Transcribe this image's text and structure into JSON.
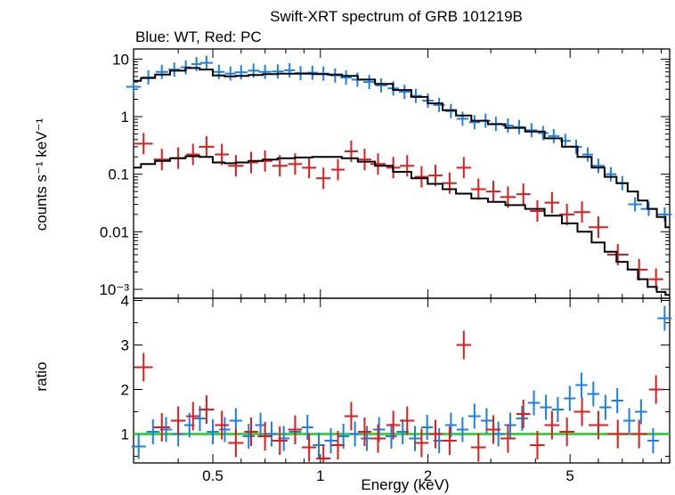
{
  "chart_data": [
    {
      "type": "scatter",
      "title": "Swift-XRT spectrum of GRB 101219B",
      "subtitle": "Blue: WT, Red: PC",
      "xlabel": "",
      "ylabel": "counts s⁻¹ keV⁻¹",
      "xscale": "log",
      "yscale": "log",
      "xlim": [
        0.3,
        9.5
      ],
      "ylim": [
        0.0007,
        15
      ],
      "grid": false,
      "y_tick_labels": [
        "10",
        "1",
        "0.1",
        "0.01",
        "10⁻³"
      ],
      "series": [
        {
          "name": "WT",
          "color": "#1a7fe8",
          "kind": "data",
          "x": [
            0.3,
            0.33,
            0.36,
            0.39,
            0.42,
            0.45,
            0.48,
            0.52,
            0.56,
            0.6,
            0.65,
            0.7,
            0.76,
            0.82,
            0.88,
            0.95,
            1.02,
            1.1,
            1.18,
            1.27,
            1.37,
            1.48,
            1.6,
            1.72,
            1.85,
            2.0,
            2.15,
            2.32,
            2.5,
            2.7,
            2.9,
            3.1,
            3.35,
            3.6,
            3.9,
            4.2,
            4.5,
            4.85,
            5.2,
            5.6,
            6.0,
            6.5,
            7.0,
            7.6,
            8.3,
            9.2
          ],
          "y": [
            3.3,
            4.8,
            6.0,
            6.6,
            7.2,
            8.2,
            8.6,
            6.0,
            5.6,
            5.9,
            6.3,
            6.0,
            6.1,
            6.4,
            5.7,
            5.8,
            5.6,
            5.2,
            4.8,
            4.4,
            4.0,
            3.5,
            3.1,
            2.7,
            2.3,
            1.9,
            1.6,
            1.25,
            0.92,
            0.8,
            0.85,
            0.75,
            0.7,
            0.66,
            0.58,
            0.52,
            0.46,
            0.38,
            0.3,
            0.22,
            0.14,
            0.1,
            0.07,
            0.03,
            0.025,
            0.02
          ]
        },
        {
          "name": "PC",
          "color": "#e01b1b",
          "kind": "data",
          "x": [
            0.32,
            0.36,
            0.4,
            0.44,
            0.48,
            0.53,
            0.58,
            0.64,
            0.7,
            0.77,
            0.85,
            0.93,
            1.02,
            1.12,
            1.22,
            1.33,
            1.45,
            1.6,
            1.75,
            1.92,
            2.1,
            2.3,
            2.52,
            2.77,
            3.05,
            3.35,
            3.7,
            4.05,
            4.45,
            4.9,
            5.4,
            6.0,
            6.8,
            7.8,
            8.7
          ],
          "y": [
            0.34,
            0.18,
            0.19,
            0.22,
            0.3,
            0.22,
            0.14,
            0.16,
            0.17,
            0.14,
            0.15,
            0.13,
            0.085,
            0.12,
            0.25,
            0.18,
            0.15,
            0.13,
            0.14,
            0.09,
            0.095,
            0.07,
            0.13,
            0.055,
            0.05,
            0.04,
            0.045,
            0.023,
            0.032,
            0.02,
            0.022,
            0.012,
            0.004,
            0.0022,
            0.0015
          ]
        },
        {
          "name": "WT model",
          "color": "#000000",
          "kind": "model",
          "x": [
            0.3,
            0.33,
            0.36,
            0.4,
            0.44,
            0.48,
            0.52,
            0.56,
            0.6,
            0.66,
            0.72,
            0.8,
            0.9,
            1.0,
            1.1,
            1.2,
            1.35,
            1.5,
            1.7,
            1.9,
            2.1,
            2.3,
            2.5,
            2.8,
            3.1,
            3.5,
            4.0,
            4.5,
            5.0,
            5.5,
            6.0,
            6.5,
            7.0,
            7.5,
            8.0,
            8.5,
            9.0,
            9.5
          ],
          "y": [
            4.2,
            4.7,
            5.4,
            6.3,
            7.0,
            6.6,
            5.2,
            5.0,
            5.1,
            5.3,
            5.5,
            5.6,
            5.6,
            5.5,
            5.4,
            5.1,
            4.4,
            3.7,
            2.9,
            2.2,
            1.7,
            1.3,
            1.05,
            0.85,
            0.74,
            0.64,
            0.55,
            0.42,
            0.3,
            0.2,
            0.13,
            0.09,
            0.07,
            0.05,
            0.035,
            0.025,
            0.018,
            0.012
          ]
        },
        {
          "name": "PC model",
          "color": "#000000",
          "kind": "model",
          "x": [
            0.3,
            0.33,
            0.36,
            0.4,
            0.44,
            0.48,
            0.52,
            0.56,
            0.6,
            0.66,
            0.72,
            0.8,
            0.9,
            1.0,
            1.1,
            1.2,
            1.35,
            1.5,
            1.7,
            1.9,
            2.1,
            2.3,
            2.5,
            2.8,
            3.1,
            3.5,
            4.0,
            4.5,
            5.0,
            5.5,
            6.0,
            6.5,
            7.0,
            7.5,
            8.0,
            8.5,
            9.0,
            9.5
          ],
          "y": [
            0.13,
            0.15,
            0.17,
            0.19,
            0.205,
            0.2,
            0.16,
            0.155,
            0.16,
            0.17,
            0.18,
            0.19,
            0.195,
            0.2,
            0.2,
            0.19,
            0.165,
            0.14,
            0.11,
            0.085,
            0.068,
            0.055,
            0.046,
            0.038,
            0.033,
            0.029,
            0.025,
            0.019,
            0.014,
            0.01,
            0.0065,
            0.0045,
            0.003,
            0.0022,
            0.0015,
            0.0011,
            0.0009,
            0.0008
          ]
        }
      ]
    },
    {
      "type": "scatter",
      "xlabel": "Energy (keV)",
      "ylabel": "ratio",
      "xscale": "log",
      "yscale": "linear",
      "xlim": [
        0.3,
        9.5
      ],
      "ylim": [
        0.35,
        4.05
      ],
      "grid": false,
      "x_tick_labels": [
        "0.5",
        "1",
        "2",
        "5"
      ],
      "x_ticks": [
        0.5,
        1,
        2,
        5
      ],
      "y_ticks": [
        1,
        2,
        3,
        4
      ],
      "reference_line": {
        "y": 1,
        "color": "#22cc22"
      },
      "series": [
        {
          "name": "WT",
          "color": "#1a7fe8",
          "x": [
            0.31,
            0.34,
            0.37,
            0.4,
            0.43,
            0.46,
            0.5,
            0.54,
            0.58,
            0.63,
            0.68,
            0.73,
            0.79,
            0.85,
            0.92,
            0.99,
            1.07,
            1.16,
            1.25,
            1.35,
            1.46,
            1.58,
            1.7,
            1.84,
            1.99,
            2.15,
            2.32,
            2.5,
            2.7,
            2.92,
            3.15,
            3.4,
            3.67,
            3.96,
            4.28,
            4.62,
            4.99,
            5.38,
            5.81,
            6.28,
            6.78,
            7.32,
            7.9,
            8.54,
            9.2
          ],
          "y": [
            0.72,
            1.05,
            1.1,
            1.0,
            1.2,
            1.35,
            1.05,
            1.1,
            1.3,
            0.95,
            1.2,
            1.0,
            0.9,
            1.05,
            1.15,
            0.75,
            0.85,
            0.95,
            1.0,
            0.9,
            1.1,
            0.95,
            1.05,
            0.9,
            1.15,
            0.85,
            1.2,
            1.1,
            1.4,
            1.3,
            1.0,
            1.2,
            1.35,
            1.7,
            1.6,
            1.55,
            1.8,
            2.1,
            1.9,
            1.6,
            1.75,
            1.3,
            1.5,
            0.85,
            3.6
          ]
        },
        {
          "name": "PC",
          "color": "#e01b1b",
          "x": [
            0.32,
            0.36,
            0.4,
            0.44,
            0.48,
            0.53,
            0.58,
            0.64,
            0.7,
            0.77,
            0.85,
            0.93,
            1.02,
            1.12,
            1.22,
            1.33,
            1.45,
            1.6,
            1.75,
            1.92,
            2.1,
            2.3,
            2.52,
            2.77,
            3.05,
            3.35,
            3.7,
            4.05,
            4.45,
            4.9,
            5.4,
            6.0,
            6.8,
            7.8,
            8.7
          ],
          "y": [
            2.5,
            1.15,
            1.3,
            1.4,
            1.55,
            1.2,
            0.8,
            1.05,
            0.95,
            0.85,
            1.1,
            0.7,
            0.45,
            0.75,
            1.4,
            1.05,
            0.9,
            1.2,
            1.3,
            0.8,
            1.0,
            0.85,
            3.0,
            0.7,
            1.1,
            0.9,
            1.45,
            0.75,
            1.2,
            1.05,
            1.5,
            1.2,
            1.0,
            1.0,
            2.0
          ]
        }
      ]
    }
  ]
}
